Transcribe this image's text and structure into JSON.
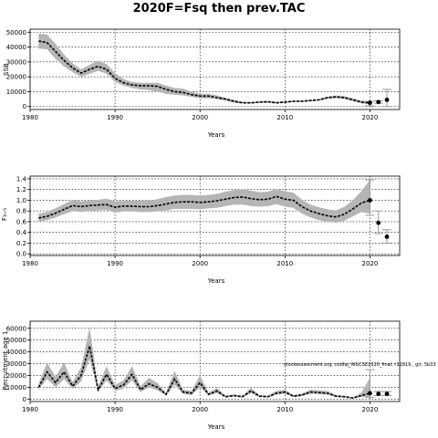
{
  "figure": {
    "title": "2020F=Fsq then prev.TAC"
  },
  "chart_data": [
    {
      "type": "line",
      "panel": "ssb",
      "xlabel": "Years",
      "ylabel": "SSB",
      "xlim": [
        1980,
        2023.5
      ],
      "ylim": [
        -2000,
        52000
      ],
      "xticks": [
        1980,
        1990,
        2000,
        2010,
        2020
      ],
      "yticks": [
        0,
        10000,
        20000,
        30000,
        40000,
        50000
      ],
      "grid": true,
      "annotation": "",
      "series": [
        {
          "x": [
            1981,
            1982,
            1983,
            1984,
            1985,
            1986,
            1987,
            1988,
            1989,
            1990,
            1991,
            1992,
            1993,
            1994,
            1995,
            1996,
            1997,
            1998,
            1999,
            2000,
            2001,
            2002,
            2003,
            2004,
            2005,
            2006,
            2007,
            2008,
            2009,
            2010,
            2011,
            2012,
            2013,
            2014,
            2015,
            2016,
            2017,
            2018,
            2019,
            2020
          ],
          "values": [
            44000,
            43000,
            37000,
            31000,
            26000,
            22500,
            25000,
            27000,
            25000,
            19000,
            16000,
            14500,
            14000,
            14000,
            13500,
            11500,
            10000,
            9500,
            8000,
            7000,
            7000,
            6000,
            5000,
            3500,
            2500,
            2500,
            3000,
            3200,
            2500,
            3000,
            3500,
            3500,
            4000,
            4500,
            6000,
            6500,
            6000,
            4500,
            3000,
            2500
          ],
          "lower": [
            39000,
            38500,
            32000,
            27000,
            23000,
            20000,
            22000,
            24000,
            22000,
            16500,
            14000,
            12500,
            11500,
            11000,
            10000,
            8500,
            8000,
            7500,
            6500,
            5500,
            5500,
            5000,
            4000,
            2500,
            2000,
            2000,
            2500,
            2500,
            2000,
            2500,
            3000,
            3000,
            3500,
            4000,
            5200,
            5600,
            5000,
            3500,
            2200,
            1500
          ],
          "upper": [
            49000,
            48500,
            42000,
            35000,
            29000,
            25000,
            28000,
            31000,
            28500,
            22500,
            18500,
            16500,
            16000,
            16000,
            16000,
            14000,
            12500,
            12000,
            10000,
            8500,
            8500,
            7500,
            6000,
            4500,
            3200,
            3000,
            3500,
            3800,
            3200,
            3500,
            4000,
            4000,
            4500,
            5000,
            6800,
            7300,
            7000,
            5500,
            4000,
            3500
          ]
        }
      ],
      "projections": [
        {
          "x": 2020,
          "value": 2500,
          "lower": 500,
          "upper": 3500
        },
        {
          "x": 2021,
          "value": 3000,
          "lower": 2200,
          "upper": 3800
        },
        {
          "x": 2022,
          "value": 4500,
          "lower": 0,
          "upper": 11500
        }
      ]
    },
    {
      "type": "line",
      "panel": "f",
      "xlabel": "Years",
      "ylabel": "F₃‒₅",
      "xlim": [
        1980,
        2023.5
      ],
      "ylim": [
        -0.03,
        1.45
      ],
      "xticks": [
        1980,
        1990,
        2000,
        2010,
        2020
      ],
      "yticks": [
        0.0,
        0.2,
        0.4,
        0.6,
        0.8,
        1.0,
        1.2,
        1.4
      ],
      "ytick_labels": [
        "0.0",
        "0.2",
        "0.4",
        "0.6",
        "0.8",
        "1.0",
        "1.2",
        "1.4"
      ],
      "grid": true,
      "annotation": "",
      "series": [
        {
          "x": [
            1981,
            1982,
            1983,
            1984,
            1985,
            1986,
            1987,
            1988,
            1989,
            1990,
            1991,
            1992,
            1993,
            1994,
            1995,
            1996,
            1997,
            1998,
            1999,
            2000,
            2001,
            2002,
            2003,
            2004,
            2005,
            2006,
            2007,
            2008,
            2009,
            2010,
            2011,
            2012,
            2013,
            2014,
            2015,
            2016,
            2017,
            2018,
            2019,
            2020
          ],
          "values": [
            0.67,
            0.7,
            0.76,
            0.83,
            0.9,
            0.88,
            0.9,
            0.91,
            0.92,
            0.87,
            0.89,
            0.89,
            0.88,
            0.88,
            0.9,
            0.93,
            0.96,
            0.97,
            0.97,
            0.96,
            0.97,
            0.99,
            1.02,
            1.05,
            1.06,
            1.03,
            1.01,
            1.02,
            1.07,
            1.02,
            1.0,
            0.88,
            0.8,
            0.75,
            0.71,
            0.69,
            0.74,
            0.84,
            0.95,
            1.0
          ],
          "lower": [
            0.6,
            0.63,
            0.68,
            0.74,
            0.8,
            0.78,
            0.8,
            0.81,
            0.82,
            0.77,
            0.79,
            0.79,
            0.78,
            0.78,
            0.79,
            0.81,
            0.84,
            0.84,
            0.84,
            0.83,
            0.85,
            0.86,
            0.89,
            0.92,
            0.92,
            0.89,
            0.88,
            0.89,
            0.93,
            0.88,
            0.86,
            0.75,
            0.68,
            0.63,
            0.6,
            0.58,
            0.62,
            0.7,
            0.78,
            0.75
          ],
          "upper": [
            0.75,
            0.78,
            0.85,
            0.93,
            1.01,
            0.98,
            1.0,
            1.01,
            1.03,
            0.98,
            0.99,
            0.99,
            0.99,
            0.99,
            1.02,
            1.06,
            1.09,
            1.1,
            1.1,
            1.09,
            1.1,
            1.12,
            1.16,
            1.19,
            1.21,
            1.18,
            1.15,
            1.16,
            1.21,
            1.17,
            1.14,
            1.01,
            0.92,
            0.87,
            0.83,
            0.81,
            0.88,
            1.0,
            1.17,
            1.38
          ]
        }
      ],
      "projections": [
        {
          "x": 2020,
          "value": 1.0,
          "lower": 0.72,
          "upper": 1.38
        },
        {
          "x": 2021,
          "value": 0.58,
          "lower": 0.38,
          "upper": 0.8
        },
        {
          "x": 2022,
          "value": 0.32,
          "lower": 0.2,
          "upper": 0.45
        }
      ]
    },
    {
      "type": "line",
      "panel": "recruitment",
      "xlabel": "Years",
      "ylabel": "Recruitment age 1",
      "xlim": [
        1980,
        2023.5
      ],
      "ylim": [
        -2000,
        66000
      ],
      "xticks": [
        1980,
        1990,
        2000,
        2010,
        2020
      ],
      "yticks": [
        0,
        10000,
        20000,
        30000,
        40000,
        50000,
        60000
      ],
      "grid": true,
      "annotation": "stockassessment.org, codfaj_WGCSE2020_final, r12819 , git: 5b33",
      "series": [
        {
          "x": [
            1981,
            1982,
            1983,
            1984,
            1985,
            1986,
            1987,
            1988,
            1989,
            1990,
            1991,
            1992,
            1993,
            1994,
            1995,
            1996,
            1997,
            1998,
            1999,
            2000,
            2001,
            2002,
            2003,
            2004,
            2005,
            2006,
            2007,
            2008,
            2009,
            2010,
            2011,
            2012,
            2013,
            2014,
            2015,
            2016,
            2017,
            2018,
            2019,
            2020
          ],
          "values": [
            10000,
            23000,
            14000,
            23000,
            11000,
            20000,
            45000,
            8000,
            21000,
            9000,
            12000,
            21000,
            8000,
            13000,
            10000,
            4000,
            17000,
            6000,
            5000,
            14000,
            4000,
            7000,
            2000,
            3000,
            2000,
            7000,
            2500,
            2000,
            5000,
            6000,
            2500,
            3500,
            6000,
            5500,
            5000,
            2500,
            2000,
            1000,
            3000,
            5000
          ],
          "lower": [
            8000,
            17000,
            10000,
            17000,
            8500,
            15000,
            34000,
            6000,
            16000,
            7000,
            9000,
            16000,
            6000,
            10000,
            7500,
            3000,
            12000,
            4500,
            3500,
            10000,
            3000,
            5000,
            1500,
            2000,
            1500,
            5000,
            1800,
            1500,
            3800,
            4500,
            1800,
            2600,
            4500,
            4200,
            3800,
            1800,
            1500,
            700,
            1800,
            1500
          ],
          "upper": [
            13000,
            31000,
            19000,
            31000,
            14500,
            27000,
            61000,
            11000,
            28000,
            12000,
            16000,
            28000,
            11000,
            18000,
            13500,
            5500,
            24000,
            8000,
            7000,
            20000,
            5500,
            9500,
            3000,
            4000,
            3000,
            9500,
            3500,
            3000,
            7000,
            8000,
            3500,
            4800,
            8000,
            7500,
            7000,
            3500,
            3000,
            1500,
            5500,
            18000
          ]
        }
      ],
      "projections": [
        {
          "x": 2020,
          "value": 5000,
          "lower": 1500,
          "upper": 25000
        },
        {
          "x": 2021,
          "value": 4500,
          "lower": 3000,
          "upper": 6500
        },
        {
          "x": 2022,
          "value": 4500,
          "lower": 3000,
          "upper": 6500
        }
      ]
    }
  ]
}
